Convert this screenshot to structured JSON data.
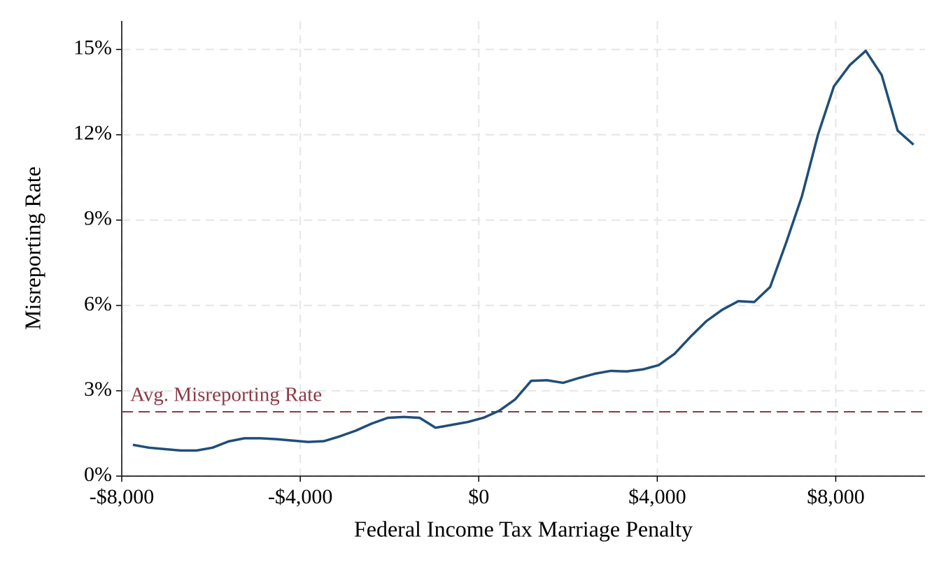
{
  "chart_data": {
    "type": "line",
    "x_label": "Federal Income Tax Marriage Penalty",
    "y_label": "Misreporting Rate",
    "x": [
      -7750,
      -7393,
      -7036,
      -6679,
      -6322,
      -5965,
      -5608,
      -5251,
      -4894,
      -4537,
      -4180,
      -3823,
      -3466,
      -3109,
      -2752,
      -2395,
      -2038,
      -1681,
      -1324,
      -967,
      -610,
      -253,
      104,
      461,
      818,
      1175,
      1532,
      1889,
      2246,
      2603,
      2960,
      3317,
      3674,
      4031,
      4388,
      4745,
      5102,
      5459,
      5816,
      6173,
      6530,
      6887,
      7244,
      7601,
      7958,
      8315,
      8672,
      9029,
      9386,
      9743
    ],
    "series": [
      {
        "name": "Misreporting Rate",
        "color": "#1f4e79",
        "values": [
          1.1,
          1.0,
          0.95,
          0.9,
          0.9,
          1.0,
          1.22,
          1.33,
          1.33,
          1.3,
          1.25,
          1.2,
          1.23,
          1.4,
          1.6,
          1.85,
          2.05,
          2.08,
          2.05,
          1.7,
          1.8,
          1.9,
          2.05,
          2.3,
          2.7,
          3.35,
          3.37,
          3.28,
          3.45,
          3.6,
          3.7,
          3.68,
          3.75,
          3.9,
          4.3,
          4.9,
          5.45,
          5.85,
          6.15,
          6.12,
          6.65,
          8.2,
          9.85,
          12.0,
          13.7,
          14.45,
          14.95,
          14.1,
          12.15,
          11.65
        ]
      }
    ],
    "reference_line": {
      "value": 2.26,
      "label": "Avg. Misreporting Rate",
      "color": "#8b3a46"
    },
    "xlim": [
      -8000,
      10000
    ],
    "ylim": [
      0,
      16
    ],
    "xticks": [
      {
        "value": -8000,
        "label": "-$8,000"
      },
      {
        "value": -4000,
        "label": "-$4,000"
      },
      {
        "value": 0,
        "label": "$0"
      },
      {
        "value": 4000,
        "label": "$4,000"
      },
      {
        "value": 8000,
        "label": "$8,000"
      }
    ],
    "yticks": [
      {
        "value": 0,
        "label": "0%"
      },
      {
        "value": 3,
        "label": "3%"
      },
      {
        "value": 6,
        "label": "6%"
      },
      {
        "value": 9,
        "label": "9%"
      },
      {
        "value": 12,
        "label": "12%"
      },
      {
        "value": 15,
        "label": "15%"
      }
    ],
    "grid": true
  }
}
